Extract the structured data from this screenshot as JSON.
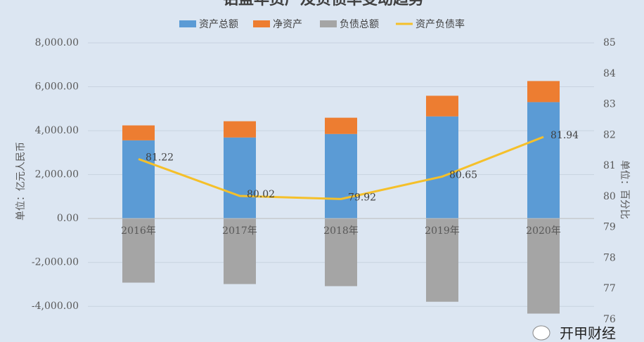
{
  "chart_data": {
    "type": "bar-line",
    "title": "铝盘年资产及负债率变动趋势",
    "categories": [
      "2016年",
      "2017年",
      "2018年",
      "2019年",
      "2020年"
    ],
    "series": [
      {
        "name": "资产总额",
        "color": "#5b9bd5",
        "type": "bar",
        "values": [
          3560,
          3690,
          3850,
          4650,
          5300
        ]
      },
      {
        "name": "净资产",
        "color": "#ed7d31",
        "type": "bar",
        "stack_on": 0,
        "values": [
          680,
          740,
          740,
          940,
          960
        ]
      },
      {
        "name": "负债总额",
        "color": "#a5a5a5",
        "type": "bar",
        "values": [
          -2920,
          -2985,
          -3080,
          -3790,
          -4330
        ]
      },
      {
        "name": "资产负债率",
        "color": "#f5c02a",
        "type": "line",
        "axis": "y2",
        "values": [
          81.22,
          80.02,
          79.92,
          80.65,
          81.94
        ]
      }
    ],
    "ylim": [
      -4600,
      8000
    ],
    "yticks": [
      {
        "value": -4000,
        "label": "-4,000.00"
      },
      {
        "value": -2000,
        "label": "-2,000.00"
      },
      {
        "value": 0,
        "label": "0.00"
      },
      {
        "value": 2000,
        "label": "2,000.00"
      },
      {
        "value": 4000,
        "label": "4,000.00"
      },
      {
        "value": 6000,
        "label": "6,000.00"
      },
      {
        "value": 8000,
        "label": "8,000.00"
      }
    ],
    "y2lim": [
      76,
      85
    ],
    "y2ticks": [
      76,
      77,
      78,
      79,
      80,
      81,
      82,
      83,
      84,
      85
    ],
    "ylabel": "单位：亿元人民币",
    "y2label": "单位：百分比",
    "grid": true,
    "legend": "top",
    "watermark": "开甲财经"
  }
}
